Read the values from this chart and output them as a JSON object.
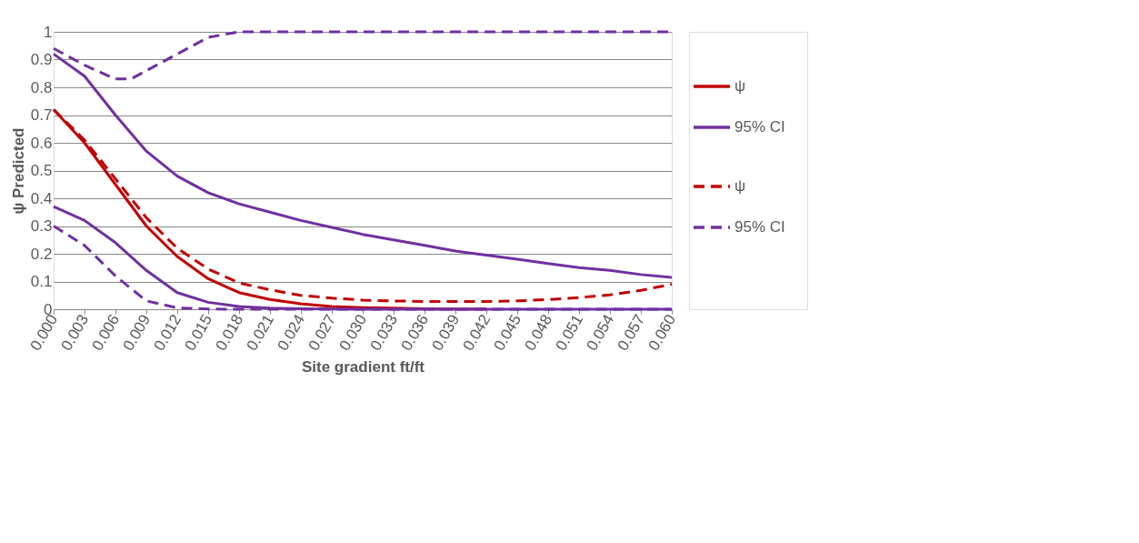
{
  "chart_data": {
    "type": "line",
    "xlabel": "Site gradient ft/ft",
    "ylabel": "ψ Predicted",
    "x": [
      0,
      0.003,
      0.006,
      0.009,
      0.012,
      0.015,
      0.018,
      0.021,
      0.024,
      0.027,
      0.03,
      0.033,
      0.036,
      0.039,
      0.042,
      0.045,
      0.048,
      0.051,
      0.054,
      0.057,
      0.06
    ],
    "series": [
      {
        "name": "ψ",
        "color": "#c00000",
        "line_style": "solid",
        "values": [
          0.72,
          0.6,
          0.45,
          0.3,
          0.19,
          0.11,
          0.06,
          0.035,
          0.02,
          0.01,
          0.006,
          0.004,
          0.002,
          0.001,
          0.001,
          null,
          null,
          null,
          null,
          null,
          null
        ]
      },
      {
        "name": "95% CI",
        "color": "#7030a0",
        "line_style": "solid",
        "values": [
          0.92,
          0.84,
          0.7,
          0.57,
          0.48,
          0.42,
          0.38,
          0.35,
          0.32,
          0.295,
          0.27,
          0.25,
          0.23,
          0.21,
          0.195,
          0.18,
          0.165,
          0.15,
          0.14,
          0.125,
          0.115
        ]
      },
      {
        "color": "#7030a0",
        "line_style": "solid",
        "values": [
          0.37,
          0.32,
          0.24,
          0.14,
          0.06,
          0.025,
          0.01,
          0.004,
          0.002,
          0.001,
          0,
          0,
          0,
          0,
          0,
          0,
          0,
          0,
          0,
          0,
          0
        ]
      },
      {
        "name": "ψ",
        "color": "#c00000",
        "line_style": "dashed",
        "values": [
          0.72,
          0.61,
          0.47,
          0.33,
          0.22,
          0.145,
          0.095,
          0.07,
          0.05,
          0.04,
          0.033,
          0.03,
          0.028,
          0.028,
          0.028,
          0.03,
          0.035,
          0.042,
          0.052,
          0.068,
          0.09
        ]
      },
      {
        "name": "95% CI",
        "color": "#7030a0",
        "line_style": "dashed",
        "x": [
          0,
          0.003,
          0.006,
          0.0075,
          0.009,
          0.012,
          0.015,
          0.018,
          0.021,
          0.024,
          0.027,
          0.03,
          0.033,
          0.036,
          0.039,
          0.042,
          0.045,
          0.048,
          0.051,
          0.054,
          0.057,
          0.06
        ],
        "values": [
          0.94,
          0.88,
          0.83,
          0.83,
          0.86,
          0.92,
          0.98,
          1,
          1,
          1,
          1,
          1,
          1,
          1,
          1,
          1,
          1,
          1,
          1,
          1,
          1,
          1
        ]
      },
      {
        "color": "#7030a0",
        "line_style": "dashed",
        "values": [
          0.3,
          0.23,
          0.12,
          0.03,
          0.005,
          0.001,
          0,
          0,
          0,
          0,
          0,
          0,
          0,
          0,
          0,
          0,
          0,
          0,
          0,
          0,
          0
        ]
      }
    ],
    "xlim": [
      0,
      0.06
    ],
    "xticks": [
      {
        "value": 0,
        "label": "0.000"
      },
      0.003,
      0.006,
      0.009,
      0.012,
      0.015,
      0.018,
      0.021,
      0.024,
      0.027,
      {
        "value": 0.03,
        "label": "0.030"
      },
      0.033,
      0.036,
      0.039,
      0.042,
      0.045,
      0.048,
      0.051,
      0.054,
      0.057,
      {
        "value": 0.06,
        "label": "0.060"
      }
    ],
    "ylim": [
      0,
      1
    ],
    "yticks": [
      0,
      0.1,
      0.2,
      0.3,
      0.4,
      0.5,
      0.6,
      0.7,
      0.8,
      0.9,
      1
    ],
    "grid": "y",
    "legend": "right",
    "marker": "none"
  }
}
